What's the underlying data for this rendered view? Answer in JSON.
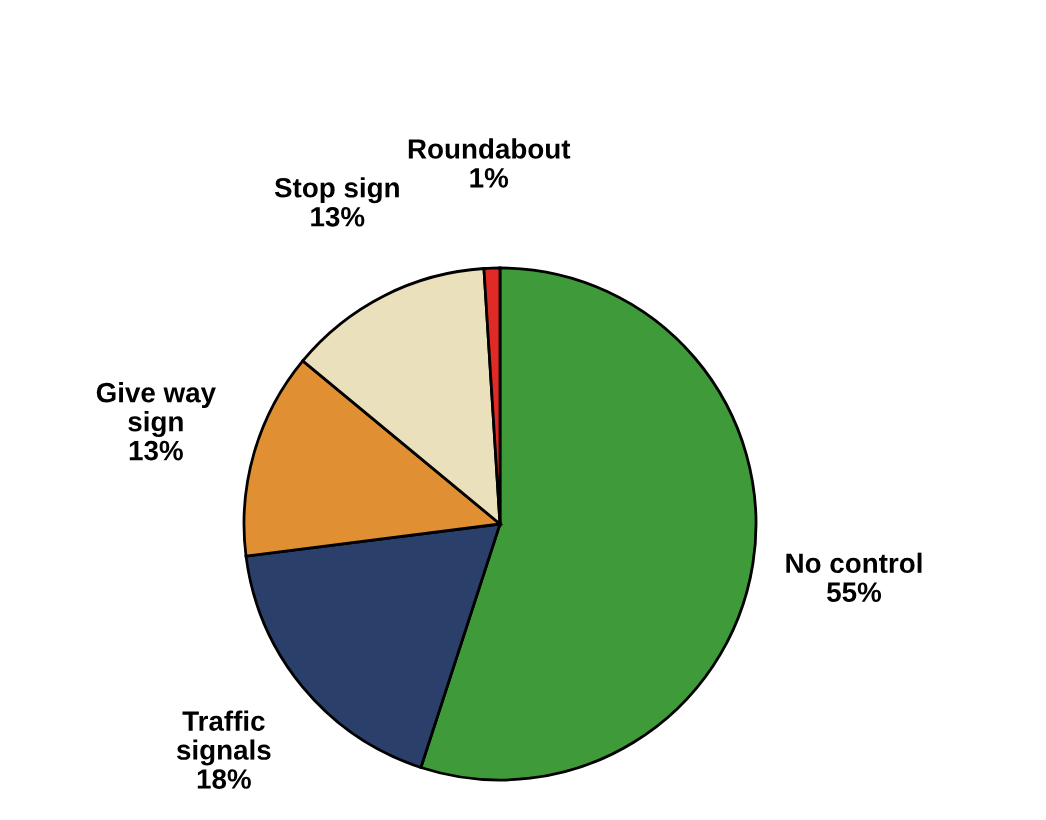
{
  "chart_data": {
    "type": "pie",
    "categories": [
      "No control",
      "Traffic\nsignals",
      "Give way\nsign",
      "Stop sign",
      "Roundabout"
    ],
    "values": [
      55,
      18,
      13,
      13,
      1
    ],
    "value_labels": [
      "55%",
      "18%",
      "13%",
      "13%",
      "1%"
    ],
    "colors": [
      "#3f9a3a",
      "#2b3f6b",
      "#e09032",
      "#ebe0bc",
      "#e02a26"
    ],
    "legend": false
  }
}
